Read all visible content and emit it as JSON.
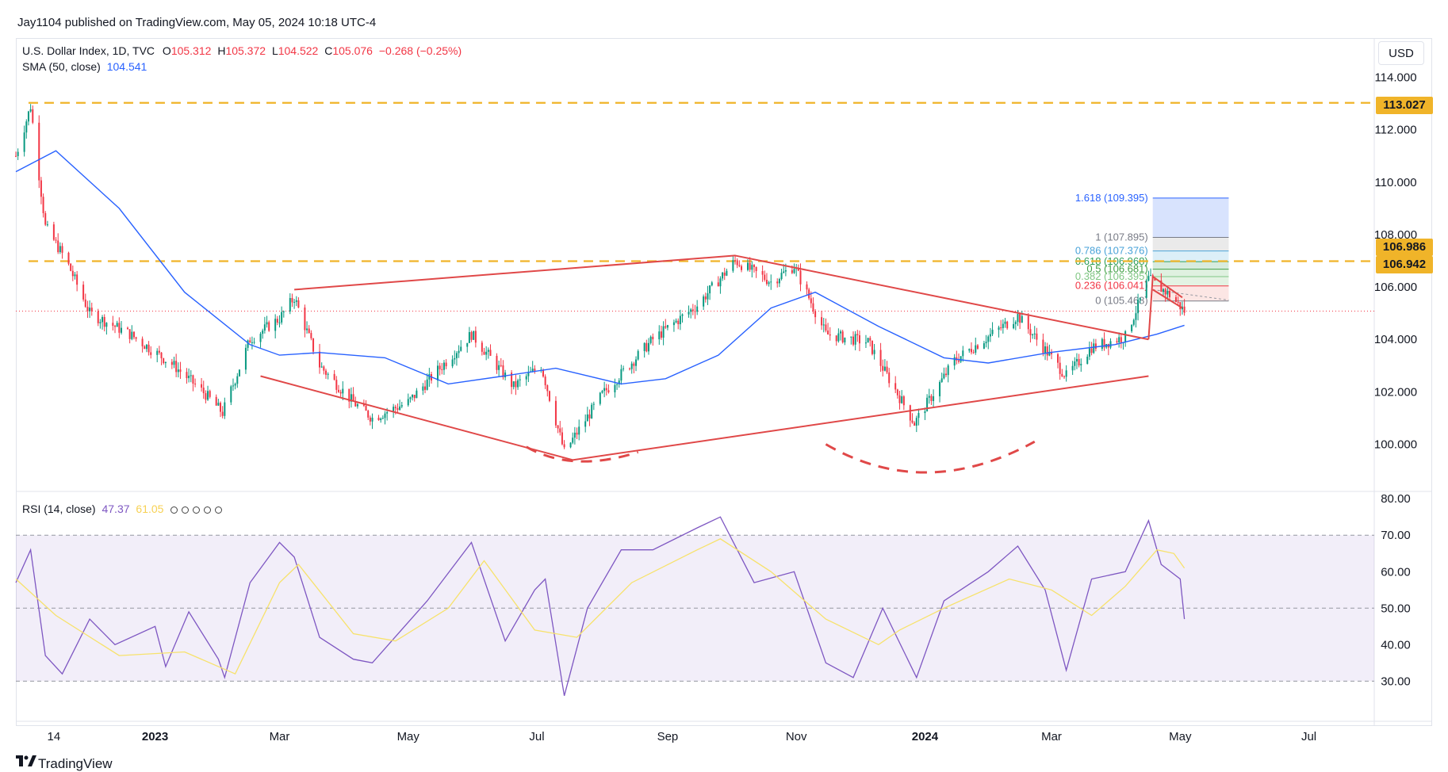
{
  "header": {
    "published": "Jay1104 published on TradingView.com, May 05, 2024 10:18 UTC-4"
  },
  "legend": {
    "symbol": "U.S. Dollar Index, 1D, TVC",
    "o_label": "O",
    "o_value": "105.312",
    "h_label": "H",
    "h_value": "105.372",
    "l_label": "L",
    "l_value": "104.522",
    "c_label": "C",
    "c_value": "105.076",
    "change": "−0.268 (−0.25%)",
    "sma_label": "SMA (50, close)",
    "sma_value": "104.541",
    "rsi_label": "RSI (14, close)",
    "rsi_value": "47.37",
    "rsi_ma_value": "61.05"
  },
  "currency_button": "USD",
  "price_tags": [
    "113.027",
    "106.986",
    "106.942"
  ],
  "footer": {
    "brand": "TradingView"
  },
  "colors": {
    "up": "#089981",
    "down": "#f23645",
    "sma": "#2962ff",
    "rsi": "#7e57c2",
    "rsi_ma": "#f7e26b",
    "level": "#f0b429",
    "pattern": "#e04848"
  },
  "chart_data": [
    {
      "type": "candlestick",
      "title": "U.S. Dollar Index, 1D, TVC",
      "y_ticks": [
        "114.000",
        "112.000",
        "110.000",
        "108.000",
        "106.000",
        "104.000",
        "102.000",
        "100.000"
      ],
      "ylim": [
        98.2,
        115.5
      ],
      "x_ticks": [
        "14",
        "2023",
        "Mar",
        "May",
        "Jul",
        "Sep",
        "Nov",
        "2024",
        "Mar",
        "May",
        "Jul"
      ],
      "x_tick_dates": [
        "2022-11-14",
        "2023-01-01",
        "2023-03-01",
        "2023-05-01",
        "2023-07-01",
        "2023-09-01",
        "2023-11-01",
        "2024-01-01",
        "2024-03-01",
        "2024-05-01",
        "2024-07-01"
      ],
      "xlim": [
        "2022-10-27",
        "2024-08-01"
      ],
      "series": [
        {
          "name": "U.S. Dollar Index",
          "role": "close_path_keypoints",
          "points": [
            [
              "2022-10-27",
              111.0
            ],
            [
              "2022-11-03",
              112.9
            ],
            [
              "2022-11-10",
              108.3
            ],
            [
              "2022-11-20",
              107.0
            ],
            [
              "2022-12-01",
              105.0
            ],
            [
              "2022-12-20",
              104.2
            ],
            [
              "2023-01-10",
              103.0
            ],
            [
              "2023-01-25",
              101.9
            ],
            [
              "2023-02-02",
              101.2
            ],
            [
              "2023-02-15",
              104.0
            ],
            [
              "2023-03-01",
              104.8
            ],
            [
              "2023-03-08",
              105.6
            ],
            [
              "2023-03-20",
              103.0
            ],
            [
              "2023-04-05",
              101.6
            ],
            [
              "2023-04-14",
              101.0
            ],
            [
              "2023-05-01",
              101.6
            ],
            [
              "2023-05-31",
              104.2
            ],
            [
              "2023-06-20",
              102.2
            ],
            [
              "2023-07-03",
              103.0
            ],
            [
              "2023-07-14",
              99.7
            ],
            [
              "2023-08-01",
              101.9
            ],
            [
              "2023-08-25",
              104.0
            ],
            [
              "2023-09-15",
              105.3
            ],
            [
              "2023-10-03",
              107.0
            ],
            [
              "2023-10-20",
              106.2
            ],
            [
              "2023-10-31",
              106.8
            ],
            [
              "2023-11-15",
              104.2
            ],
            [
              "2023-12-05",
              103.9
            ],
            [
              "2023-12-27",
              100.8
            ],
            [
              "2024-01-15",
              103.2
            ],
            [
              "2024-02-14",
              104.9
            ],
            [
              "2024-03-08",
              102.6
            ],
            [
              "2024-03-20",
              103.7
            ],
            [
              "2024-04-05",
              104.1
            ],
            [
              "2024-04-16",
              106.3
            ],
            [
              "2024-04-26",
              105.7
            ],
            [
              "2024-05-03",
              105.08
            ]
          ]
        },
        {
          "name": "SMA (50, close)",
          "role": "line",
          "points": [
            [
              "2022-10-27",
              110.4
            ],
            [
              "2022-11-15",
              111.2
            ],
            [
              "2022-12-15",
              109.0
            ],
            [
              "2023-01-15",
              105.8
            ],
            [
              "2023-02-15",
              103.8
            ],
            [
              "2023-03-01",
              103.4
            ],
            [
              "2023-03-20",
              103.5
            ],
            [
              "2023-04-20",
              103.3
            ],
            [
              "2023-05-20",
              102.3
            ],
            [
              "2023-06-15",
              102.6
            ],
            [
              "2023-07-10",
              102.9
            ],
            [
              "2023-08-10",
              102.3
            ],
            [
              "2023-08-31",
              102.5
            ],
            [
              "2023-09-25",
              103.4
            ],
            [
              "2023-10-20",
              105.2
            ],
            [
              "2023-11-10",
              105.8
            ],
            [
              "2023-12-10",
              104.5
            ],
            [
              "2024-01-10",
              103.3
            ],
            [
              "2024-01-31",
              103.1
            ],
            [
              "2024-02-29",
              103.5
            ],
            [
              "2024-03-31",
              103.8
            ],
            [
              "2024-04-20",
              104.2
            ],
            [
              "2024-05-03",
              104.54
            ]
          ]
        }
      ],
      "horizontal_levels": [
        113.027,
        106.986,
        106.942
      ],
      "fibonacci": [
        {
          "label": "1.618 (109.395)",
          "value": 109.395
        },
        {
          "label": "1 (107.895)",
          "value": 107.895
        },
        {
          "label": "0.786 (107.376)",
          "value": 107.376
        },
        {
          "label": "0.618 (106.968)",
          "value": 106.968
        },
        {
          "label": "0.5 (106.681)",
          "value": 106.681
        },
        {
          "label": "0.382 (106.395)",
          "value": 106.395
        },
        {
          "label": "0.236 (106.041)",
          "value": 106.041
        },
        {
          "label": "0 (105.468)",
          "value": 105.468
        }
      ],
      "trend_lines": [
        [
          [
            "2023-03-08",
            105.9
          ],
          [
            "2023-10-03",
            107.2
          ]
        ],
        [
          [
            "2023-02-20",
            102.6
          ],
          [
            "2023-07-18",
            99.4
          ]
        ],
        [
          [
            "2023-10-03",
            107.2
          ],
          [
            "2024-04-16",
            104.0
          ]
        ],
        [
          [
            "2023-07-18",
            99.4
          ],
          [
            "2024-04-16",
            102.6
          ]
        ],
        [
          [
            "2024-04-16",
            104.0
          ],
          [
            "2024-04-18",
            106.4
          ]
        ],
        [
          [
            "2024-04-18",
            106.4
          ],
          [
            "2024-05-02",
            105.6
          ]
        ],
        [
          [
            "2024-04-18",
            105.9
          ],
          [
            "2024-05-02",
            105.2
          ]
        ]
      ]
    },
    {
      "type": "line",
      "title": "RSI (14, close)",
      "y_ticks": [
        "80.00",
        "70.00",
        "60.00",
        "50.00",
        "40.00",
        "30.00"
      ],
      "ylim": [
        19,
        82
      ],
      "bands": [
        30,
        50,
        70
      ],
      "series": [
        {
          "name": "RSI",
          "points": [
            [
              "2022-10-27",
              57
            ],
            [
              "2022-11-03",
              66
            ],
            [
              "2022-11-10",
              37
            ],
            [
              "2022-11-18",
              32
            ],
            [
              "2022-12-01",
              47
            ],
            [
              "2022-12-13",
              40
            ],
            [
              "2023-01-01",
              45
            ],
            [
              "2023-01-06",
              34
            ],
            [
              "2023-01-17",
              49
            ],
            [
              "2023-01-31",
              36
            ],
            [
              "2023-02-03",
              31
            ],
            [
              "2023-02-15",
              57
            ],
            [
              "2023-03-01",
              68
            ],
            [
              "2023-03-08",
              64
            ],
            [
              "2023-03-20",
              42
            ],
            [
              "2023-04-05",
              36
            ],
            [
              "2023-04-14",
              35
            ],
            [
              "2023-05-10",
              52
            ],
            [
              "2023-05-31",
              68
            ],
            [
              "2023-06-16",
              41
            ],
            [
              "2023-06-30",
              55
            ],
            [
              "2023-07-05",
              58
            ],
            [
              "2023-07-14",
              26
            ],
            [
              "2023-07-25",
              50
            ],
            [
              "2023-08-10",
              66
            ],
            [
              "2023-08-25",
              66
            ],
            [
              "2023-09-15",
              72
            ],
            [
              "2023-09-26",
              75
            ],
            [
              "2023-10-12",
              57
            ],
            [
              "2023-10-31",
              60
            ],
            [
              "2023-11-15",
              35
            ],
            [
              "2023-11-28",
              31
            ],
            [
              "2023-12-12",
              50
            ],
            [
              "2023-12-28",
              31
            ],
            [
              "2024-01-10",
              52
            ],
            [
              "2024-01-31",
              60
            ],
            [
              "2024-02-14",
              67
            ],
            [
              "2024-02-27",
              55
            ],
            [
              "2024-03-08",
              33
            ],
            [
              "2024-03-20",
              58
            ],
            [
              "2024-04-05",
              60
            ],
            [
              "2024-04-16",
              74
            ],
            [
              "2024-04-22",
              62
            ],
            [
              "2024-05-01",
              58
            ],
            [
              "2024-05-03",
              47
            ]
          ]
        },
        {
          "name": "RSI-based MA",
          "points": [
            [
              "2022-10-27",
              58
            ],
            [
              "2022-11-15",
              48
            ],
            [
              "2022-12-15",
              37
            ],
            [
              "2023-01-15",
              38
            ],
            [
              "2023-02-08",
              32
            ],
            [
              "2023-03-01",
              57
            ],
            [
              "2023-03-10",
              62
            ],
            [
              "2023-04-05",
              43
            ],
            [
              "2023-04-25",
              41
            ],
            [
              "2023-05-20",
              50
            ],
            [
              "2023-06-06",
              63
            ],
            [
              "2023-06-30",
              44
            ],
            [
              "2023-07-20",
              42
            ],
            [
              "2023-08-15",
              57
            ],
            [
              "2023-09-15",
              66
            ],
            [
              "2023-09-26",
              69
            ],
            [
              "2023-10-20",
              60
            ],
            [
              "2023-11-15",
              47
            ],
            [
              "2023-12-10",
              40
            ],
            [
              "2023-12-20",
              44
            ],
            [
              "2024-01-10",
              50
            ],
            [
              "2024-02-10",
              58
            ],
            [
              "2024-03-01",
              55
            ],
            [
              "2024-03-20",
              48
            ],
            [
              "2024-04-05",
              56
            ],
            [
              "2024-04-20",
              66
            ],
            [
              "2024-04-28",
              65
            ],
            [
              "2024-05-03",
              61
            ]
          ]
        }
      ]
    }
  ]
}
